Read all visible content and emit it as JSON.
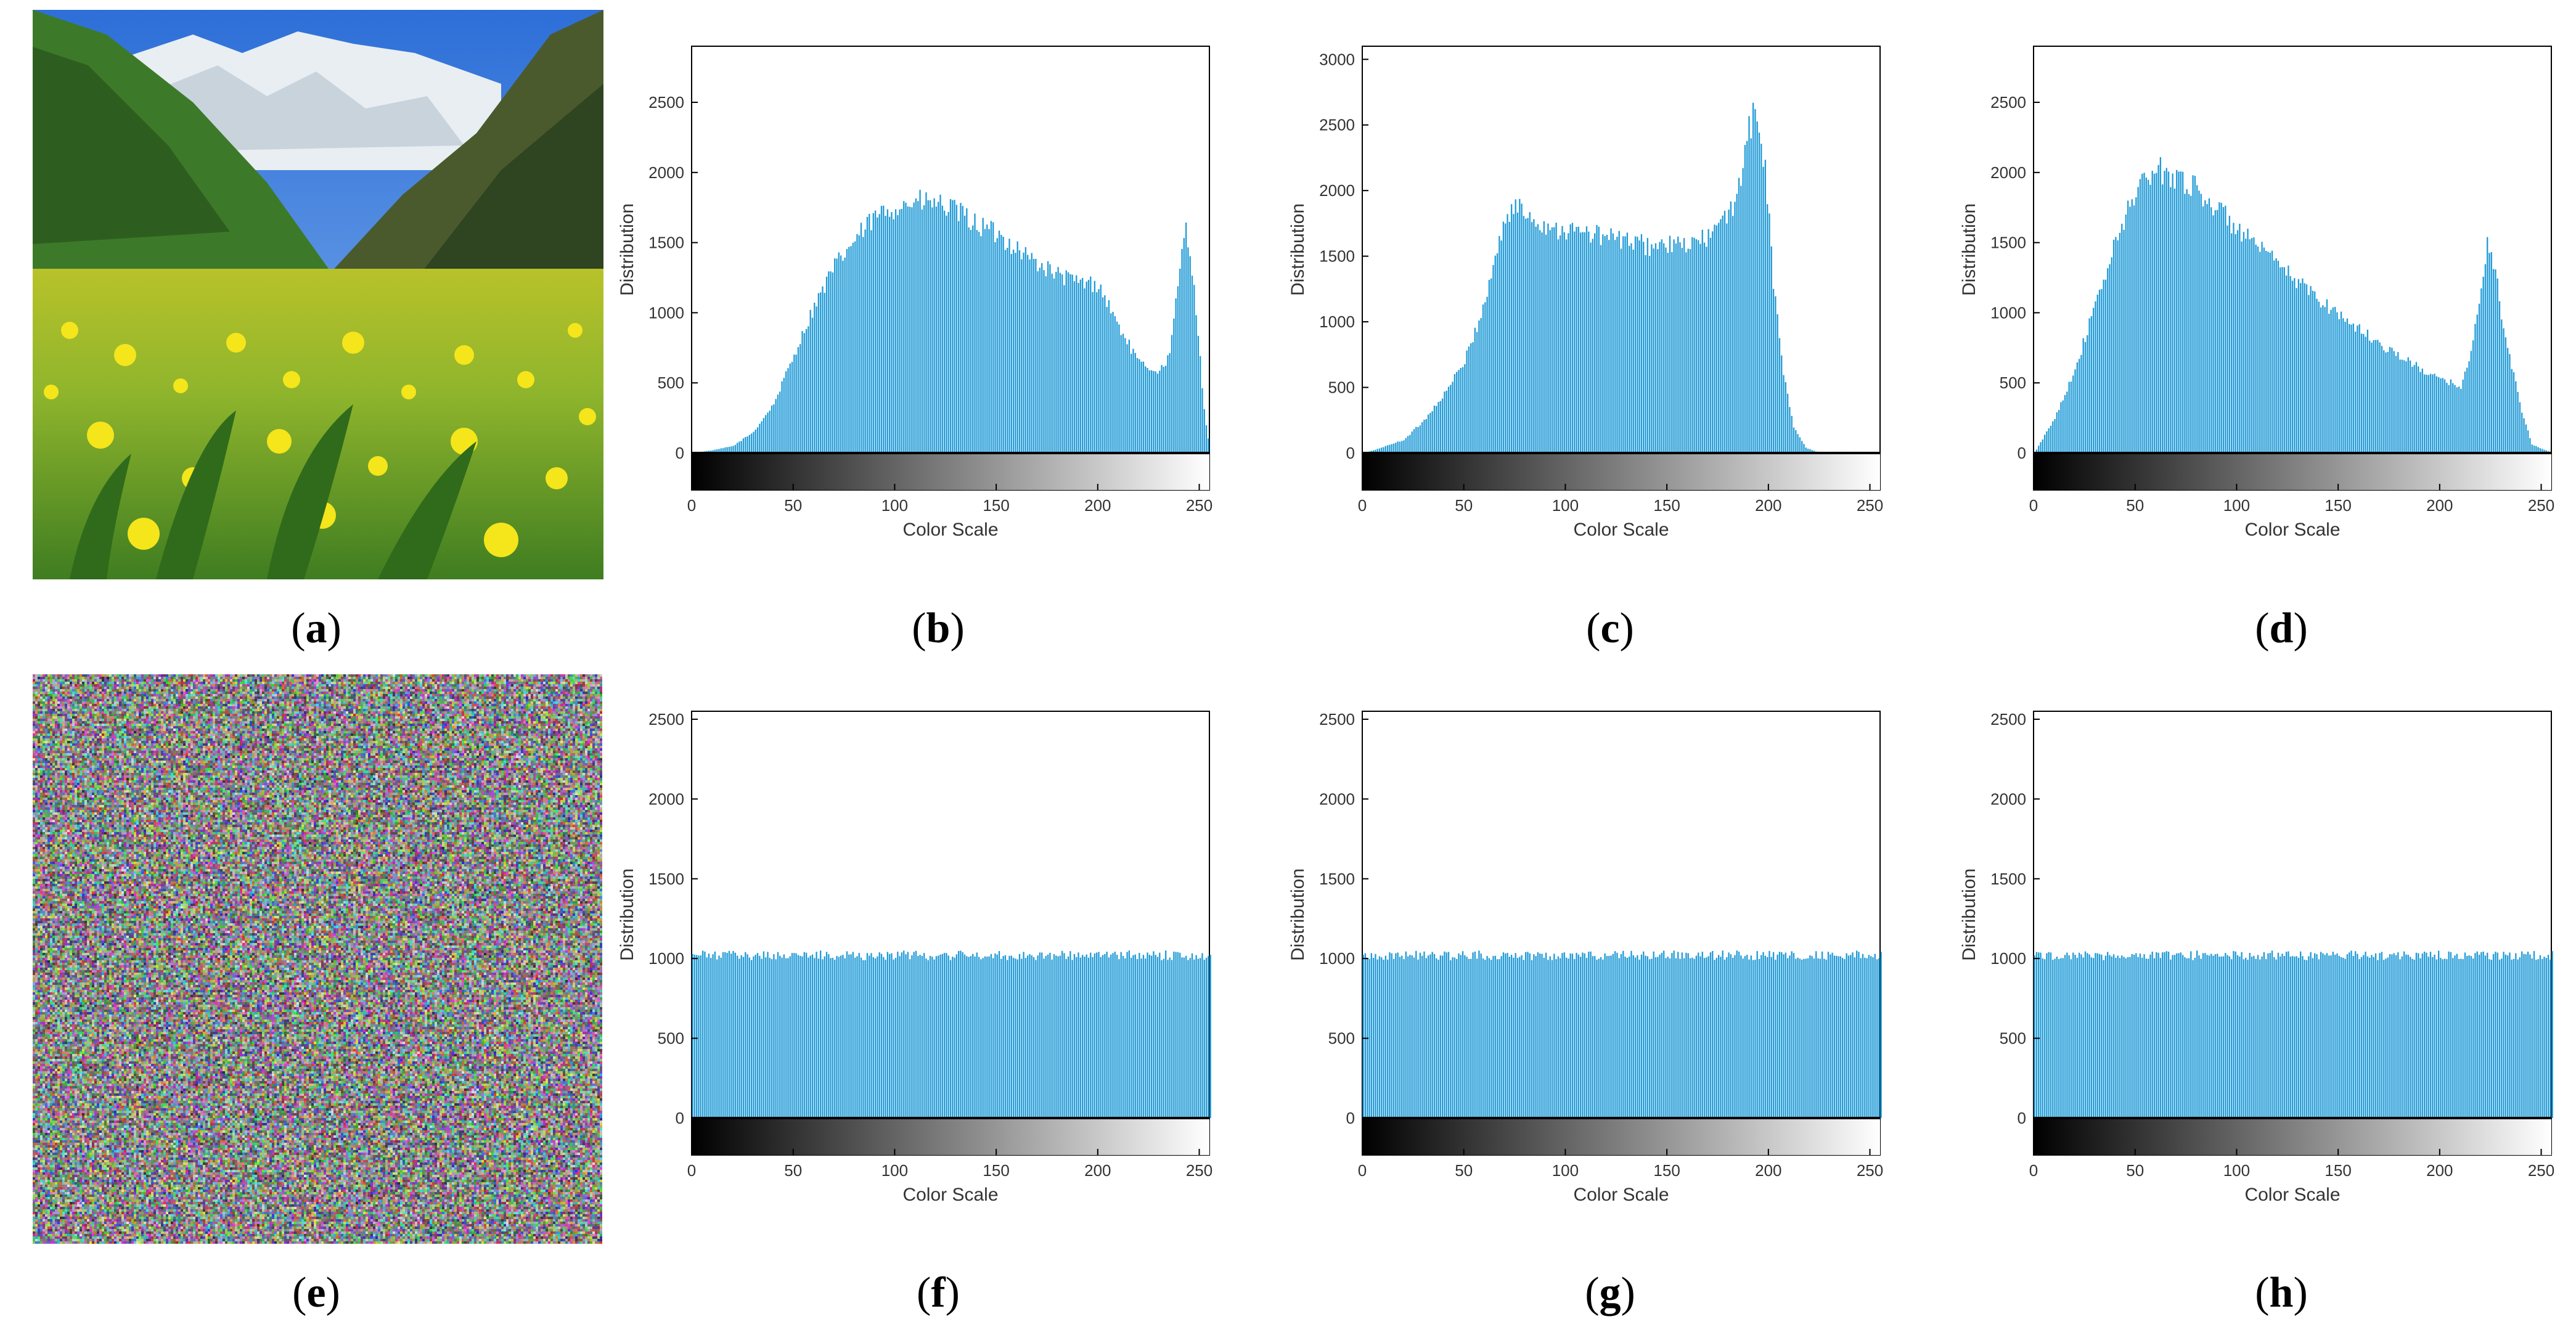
{
  "panels": {
    "a": {
      "label": "a"
    },
    "b": {
      "label": "b"
    },
    "c": {
      "label": "c"
    },
    "d": {
      "label": "d"
    },
    "e": {
      "label": "e"
    },
    "f": {
      "label": "f"
    },
    "g": {
      "label": "g"
    },
    "h": {
      "label": "h"
    }
  },
  "colors": {
    "bar": "#1f9ad6",
    "axis": "#000000"
  },
  "chart_data": [
    {
      "id": "b",
      "type": "bar",
      "xlabel": "Color Scale",
      "ylabel": "Distribution",
      "xlim": [
        0,
        255
      ],
      "ylim": [
        0,
        2900
      ],
      "yticks": [
        0,
        500,
        1000,
        1500,
        2000,
        2500
      ],
      "xticks": [
        0,
        50,
        100,
        150,
        200,
        250
      ],
      "profile": [
        [
          0,
          0
        ],
        [
          10,
          20
        ],
        [
          20,
          50
        ],
        [
          30,
          150
        ],
        [
          40,
          350
        ],
        [
          50,
          700
        ],
        [
          60,
          1050
        ],
        [
          70,
          1330
        ],
        [
          80,
          1520
        ],
        [
          90,
          1680
        ],
        [
          100,
          1760
        ],
        [
          110,
          1790
        ],
        [
          120,
          1780
        ],
        [
          130,
          1720
        ],
        [
          140,
          1630
        ],
        [
          150,
          1560
        ],
        [
          160,
          1460
        ],
        [
          170,
          1350
        ],
        [
          180,
          1270
        ],
        [
          190,
          1220
        ],
        [
          200,
          1200
        ],
        [
          210,
          900
        ],
        [
          220,
          640
        ],
        [
          230,
          580
        ],
        [
          235,
          700
        ],
        [
          240,
          1300
        ],
        [
          243,
          1650
        ],
        [
          247,
          1200
        ],
        [
          252,
          300
        ],
        [
          255,
          0
        ]
      ],
      "noise": 0.05
    },
    {
      "id": "c",
      "type": "bar",
      "xlabel": "Color Scale",
      "ylabel": "Distribution",
      "xlim": [
        0,
        255
      ],
      "ylim": [
        0,
        3100
      ],
      "yticks": [
        0,
        500,
        1000,
        1500,
        2000,
        2500,
        3000
      ],
      "xticks": [
        0,
        50,
        100,
        150,
        200,
        250
      ],
      "profile": [
        [
          0,
          0
        ],
        [
          5,
          20
        ],
        [
          20,
          100
        ],
        [
          30,
          250
        ],
        [
          40,
          450
        ],
        [
          50,
          700
        ],
        [
          60,
          1150
        ],
        [
          65,
          1500
        ],
        [
          70,
          1780
        ],
        [
          75,
          1880
        ],
        [
          90,
          1730
        ],
        [
          100,
          1700
        ],
        [
          120,
          1650
        ],
        [
          140,
          1580
        ],
        [
          160,
          1580
        ],
        [
          170,
          1650
        ],
        [
          180,
          1800
        ],
        [
          185,
          2050
        ],
        [
          190,
          2450
        ],
        [
          193,
          2600
        ],
        [
          198,
          2200
        ],
        [
          202,
          1300
        ],
        [
          207,
          600
        ],
        [
          212,
          200
        ],
        [
          218,
          40
        ],
        [
          225,
          0
        ],
        [
          255,
          0
        ]
      ],
      "noise": 0.05
    },
    {
      "id": "d",
      "type": "bar",
      "xlabel": "Color Scale",
      "ylabel": "Distribution",
      "xlim": [
        0,
        255
      ],
      "ylim": [
        0,
        2900
      ],
      "yticks": [
        0,
        500,
        1000,
        1500,
        2000,
        2500
      ],
      "xticks": [
        0,
        50,
        100,
        150,
        200,
        250
      ],
      "profile": [
        [
          0,
          0
        ],
        [
          10,
          250
        ],
        [
          20,
          600
        ],
        [
          30,
          1050
        ],
        [
          40,
          1500
        ],
        [
          50,
          1880
        ],
        [
          60,
          2020
        ],
        [
          70,
          1980
        ],
        [
          80,
          1880
        ],
        [
          90,
          1740
        ],
        [
          100,
          1600
        ],
        [
          110,
          1460
        ],
        [
          120,
          1340
        ],
        [
          130,
          1220
        ],
        [
          140,
          1100
        ],
        [
          150,
          990
        ],
        [
          160,
          880
        ],
        [
          170,
          780
        ],
        [
          180,
          690
        ],
        [
          190,
          600
        ],
        [
          200,
          520
        ],
        [
          210,
          480
        ],
        [
          215,
          700
        ],
        [
          220,
          1200
        ],
        [
          223,
          1480
        ],
        [
          227,
          1300
        ],
        [
          232,
          800
        ],
        [
          240,
          300
        ],
        [
          245,
          60
        ],
        [
          255,
          0
        ]
      ],
      "noise": 0.05
    },
    {
      "id": "f",
      "type": "bar",
      "xlabel": "Color Scale",
      "ylabel": "Distribution",
      "xlim": [
        0,
        255
      ],
      "ylim": [
        0,
        2550
      ],
      "yticks": [
        0,
        500,
        1000,
        1500,
        2000,
        2500
      ],
      "xticks": [
        0,
        50,
        100,
        150,
        200,
        250
      ],
      "profile": [
        [
          0,
          1020
        ],
        [
          255,
          1020
        ]
      ],
      "noise": 0.03
    },
    {
      "id": "g",
      "type": "bar",
      "xlabel": "Color Scale",
      "ylabel": "Distribution",
      "xlim": [
        0,
        255
      ],
      "ylim": [
        0,
        2550
      ],
      "yticks": [
        0,
        500,
        1000,
        1500,
        2000,
        2500
      ],
      "xticks": [
        0,
        50,
        100,
        150,
        200,
        250
      ],
      "profile": [
        [
          0,
          1020
        ],
        [
          255,
          1020
        ]
      ],
      "noise": 0.03
    },
    {
      "id": "h",
      "type": "bar",
      "xlabel": "Color Scale",
      "ylabel": "Distribution",
      "xlim": [
        0,
        255
      ],
      "ylim": [
        0,
        2550
      ],
      "yticks": [
        0,
        500,
        1000,
        1500,
        2000,
        2500
      ],
      "xticks": [
        0,
        50,
        100,
        150,
        200,
        250
      ],
      "profile": [
        [
          0,
          1020
        ],
        [
          255,
          1020
        ]
      ],
      "noise": 0.03
    }
  ]
}
